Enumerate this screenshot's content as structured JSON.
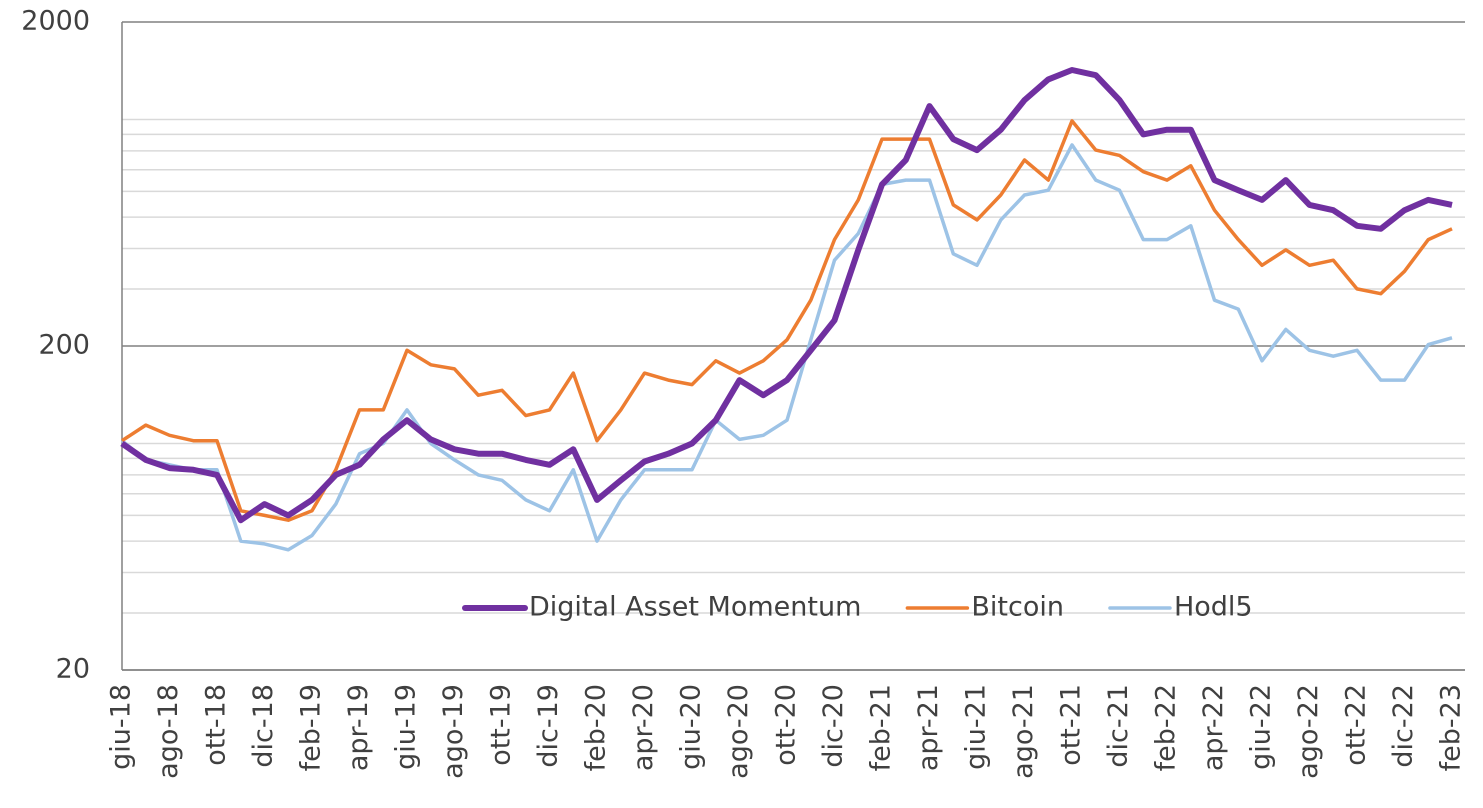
{
  "chart_data": {
    "type": "line",
    "log_scale": true,
    "grid": true,
    "legend": "bottom",
    "ylim": [
      20,
      2000
    ],
    "yticks": [
      20,
      200,
      2000
    ],
    "yticks_minor": [
      30,
      40,
      50,
      60,
      70,
      80,
      90,
      100,
      300,
      400,
      500,
      600,
      700,
      800,
      900,
      1000
    ],
    "categories": [
      "giu-18",
      null,
      "ago-18",
      null,
      "ott-18",
      null,
      "dic-18",
      null,
      "feb-19",
      null,
      "apr-19",
      null,
      "giu-19",
      null,
      "ago-19",
      null,
      "ott-19",
      null,
      "dic-19",
      null,
      "feb-20",
      null,
      "apr-20",
      null,
      "giu-20",
      null,
      "ago-20",
      null,
      "ott-20",
      null,
      "dic-20",
      null,
      "feb-21",
      null,
      "apr-21",
      null,
      "giu-21",
      null,
      "ago-21",
      null,
      "ott-21",
      null,
      "dic-21",
      null,
      "feb-22",
      null,
      "apr-22",
      null,
      "giu-22",
      null,
      "ago-22",
      null,
      "ott-22",
      null,
      "dic-22",
      null,
      "feb-23"
    ],
    "series": [
      {
        "name": "Digital Asset Momentum",
        "color": "#7030a0",
        "values": [
          100,
          89,
          84,
          83,
          80,
          58,
          65,
          60,
          67,
          80,
          86,
          103,
          118,
          103,
          96,
          93,
          93,
          89,
          86,
          96,
          67,
          77,
          88,
          93,
          100,
          118,
          157,
          141,
          157,
          194,
          240,
          396,
          630,
          750,
          1100,
          870,
          805,
          930,
          1148,
          1330,
          1422,
          1370,
          1148,
          900,
          930,
          930,
          650,
          605,
          565,
          650,
          545,
          525,
          470,
          460,
          525,
          565,
          545
        ]
      },
      {
        "name": "Bitcoin",
        "color": "#ed7d31",
        "values": [
          102,
          114,
          106,
          102,
          102,
          62,
          60,
          58,
          62,
          83,
          127,
          127,
          194,
          175,
          170,
          141,
          146,
          122,
          127,
          165,
          102,
          127,
          165,
          157,
          152,
          180,
          165,
          180,
          209,
          277,
          426,
          565,
          870,
          870,
          870,
          545,
          490,
          585,
          750,
          650,
          990,
          805,
          775,
          690,
          650,
          720,
          525,
          426,
          355,
          396,
          355,
          368,
          300,
          290,
          340,
          426,
          460
        ]
      },
      {
        "name": "Hodl5",
        "color": "#9dc3e6",
        "values": [
          102,
          89,
          86,
          83,
          83,
          50,
          49,
          47,
          52,
          65,
          93,
          100,
          127,
          100,
          89,
          80,
          77,
          67,
          62,
          83,
          50,
          67,
          83,
          83,
          83,
          118,
          103,
          106,
          118,
          209,
          368,
          445,
          630,
          650,
          650,
          385,
          355,
          490,
          585,
          605,
          835,
          650,
          605,
          426,
          426,
          470,
          277,
          260,
          180,
          225,
          194,
          186,
          194,
          157,
          157,
          202,
          212
        ]
      }
    ]
  }
}
